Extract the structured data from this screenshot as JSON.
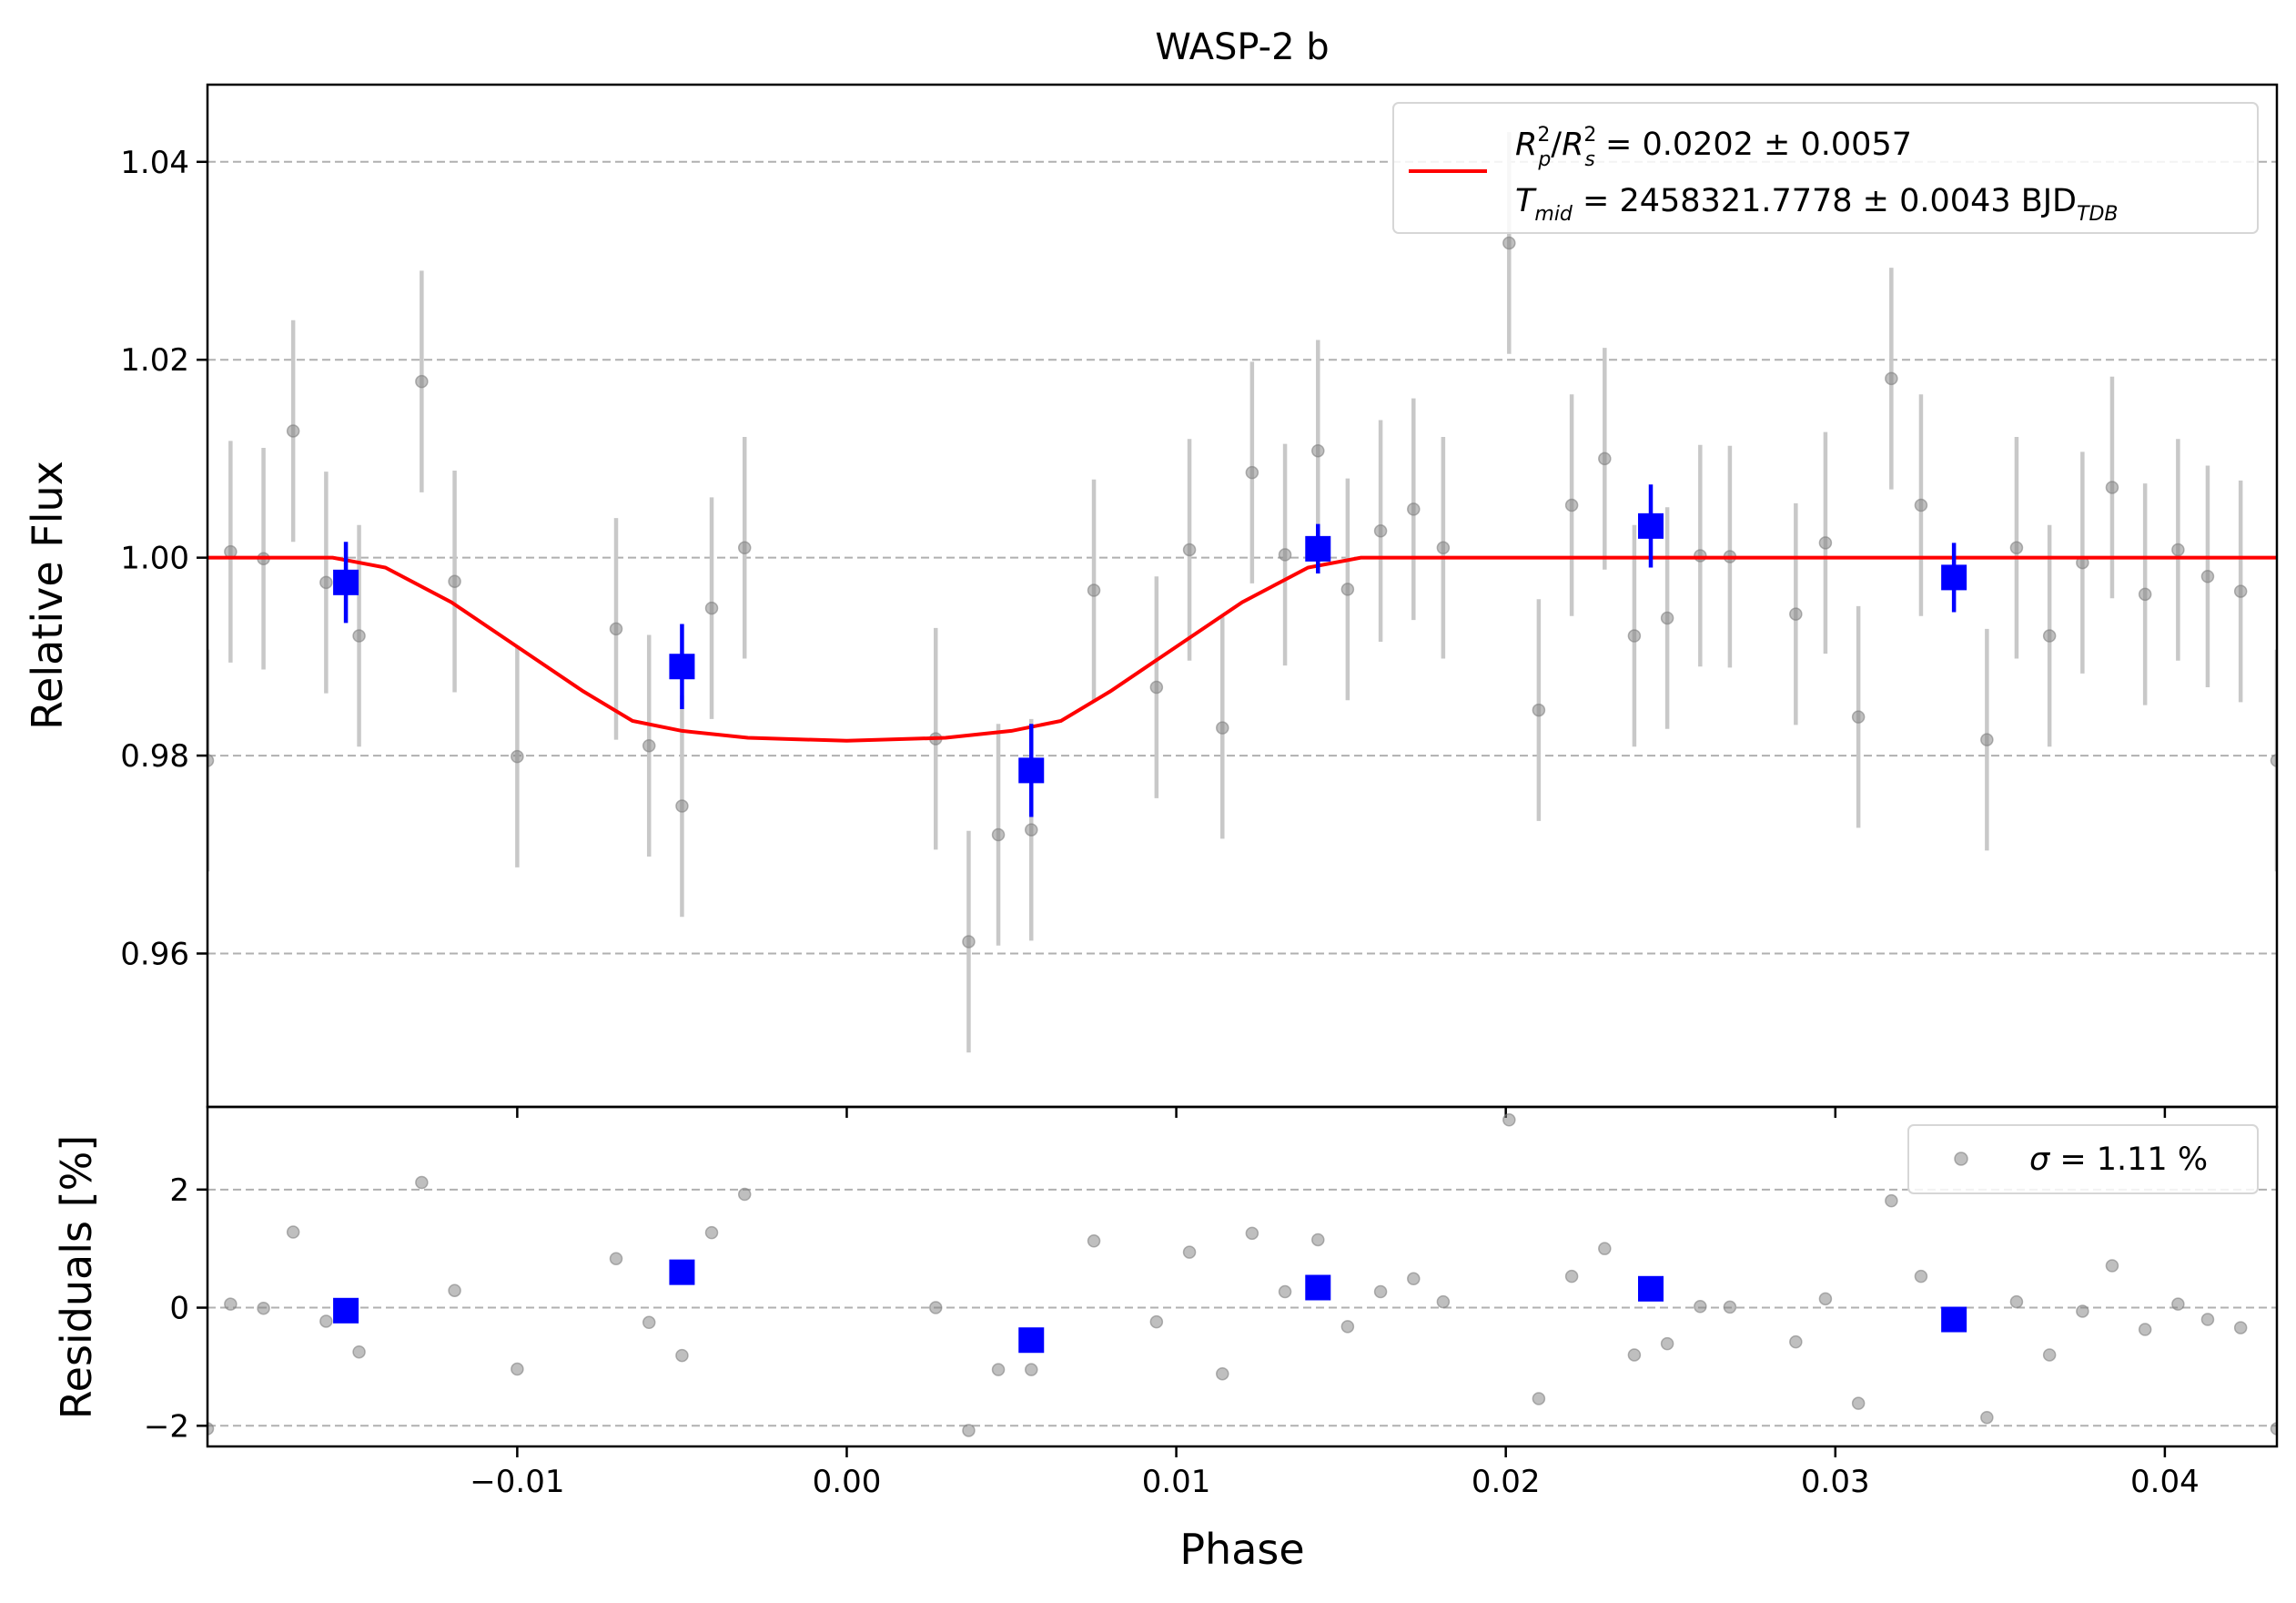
{
  "chart_data": [
    {
      "panel": "flux",
      "type": "scatter",
      "title": "WASP-2 b",
      "xlabel": "",
      "ylabel": "Relative Flux",
      "xlim": [
        -0.0194,
        0.0434
      ],
      "ylim": [
        0.9445,
        1.0478
      ],
      "xticks": [
        -0.01,
        0.0,
        0.01,
        0.02,
        0.03,
        0.04
      ],
      "xtick_labels": [
        "",
        "",
        "",
        "",
        "",
        ""
      ],
      "yticks": [
        0.96,
        0.98,
        1.0,
        1.02,
        1.04
      ],
      "ytick_labels": [
        "0.96",
        "0.98",
        "1.00",
        "1.02",
        "1.04"
      ],
      "grid": "horizontal dashed",
      "legend": {
        "placement": "upper-right",
        "line1": {
          "r": "R",
          "p": "p",
          "s": "s",
          "sq": "2",
          "text": " = 0.0202 ± 0.0057"
        },
        "line2": {
          "t": "T",
          "mid": "mid",
          "text": " = 2458321.7778 ± 0.0043 BJD",
          "tdb": "TDB"
        }
      },
      "colors": {
        "data": "#808080",
        "errorbar": "#c8c8c8",
        "binned": "#0000ff",
        "model": "#ff0000",
        "grid": "#b0b0b0"
      },
      "data_points": {
        "x": [
          -0.0194,
          -0.0187,
          -0.0177,
          -0.0168,
          -0.0158,
          -0.0148,
          -0.0129,
          -0.0119,
          -0.01,
          -0.007,
          -0.006,
          -0.005,
          -0.0041,
          -0.0031,
          0.0027,
          0.0037,
          0.0046,
          0.0056,
          0.0075,
          0.0094,
          0.0104,
          0.0114,
          0.0123,
          0.0133,
          0.0143,
          0.0152,
          0.0162,
          0.0172,
          0.0181,
          0.0201,
          0.021,
          0.022,
          0.023,
          0.0239,
          0.0249,
          0.0259,
          0.0268,
          0.0288,
          0.0297,
          0.0307,
          0.0317,
          0.0326,
          0.0346,
          0.0355,
          0.0365,
          0.0375,
          0.0384,
          0.0394,
          0.0404,
          0.0413,
          0.0423,
          0.0434
        ],
        "y": [
          0.9795,
          1.0006,
          0.9999,
          1.0128,
          0.9975,
          0.9921,
          1.0178,
          0.9976,
          0.9799,
          0.9928,
          0.981,
          0.9749,
          0.9949,
          1.001,
          0.9817,
          0.9612,
          0.972,
          0.9725,
          0.9967,
          0.9869,
          1.0008,
          0.9828,
          1.0086,
          1.0003,
          1.0108,
          0.9968,
          1.0027,
          1.0049,
          1.001,
          1.0318,
          0.9846,
          1.0053,
          1.01,
          0.9921,
          0.9939,
          1.0002,
          1.0001,
          0.9943,
          1.0015,
          0.9839,
          1.0181,
          1.0053,
          0.9816,
          1.001,
          0.9921,
          0.9995,
          1.0071,
          0.9963,
          1.0008,
          0.9981,
          0.9966,
          0.9795
        ],
        "yerr": 0.0112
      },
      "binned_points": {
        "x": [
          -0.0152,
          -0.005,
          0.0056,
          0.0143,
          0.0244,
          0.0336
        ],
        "y": [
          0.9975,
          0.989,
          0.9785,
          1.0009,
          1.0032,
          0.998
        ],
        "yerr": [
          0.0041,
          0.0043,
          0.0047,
          0.0025,
          0.0042,
          0.0035
        ]
      },
      "model": {
        "x": [
          -0.0194,
          -0.0156,
          -0.014,
          -0.012,
          -0.01,
          -0.008,
          -0.0065,
          -0.005,
          -0.003,
          0.0,
          0.003,
          0.005,
          0.0065,
          0.008,
          0.01,
          0.012,
          0.014,
          0.0156,
          0.0434
        ],
        "y": [
          1.0,
          1.0,
          0.999,
          0.9955,
          0.991,
          0.9865,
          0.9835,
          0.9825,
          0.9818,
          0.9815,
          0.9818,
          0.9825,
          0.9835,
          0.9865,
          0.991,
          0.9955,
          0.999,
          1.0,
          1.0
        ]
      }
    },
    {
      "panel": "residuals",
      "type": "scatter",
      "title": "",
      "xlabel": "Phase",
      "ylabel": "Residuals [%]",
      "xlim": [
        -0.0194,
        0.0434
      ],
      "ylim": [
        -2.35,
        3.4
      ],
      "xticks": [
        -0.01,
        0.0,
        0.01,
        0.02,
        0.03,
        0.04
      ],
      "xtick_labels": [
        "−0.01",
        "0.00",
        "0.01",
        "0.02",
        "0.03",
        "0.04"
      ],
      "yticks": [
        -2,
        0,
        2
      ],
      "ytick_labels": [
        "−2",
        "0",
        "2"
      ],
      "grid": "horizontal dashed",
      "legend": {
        "placement": "upper-right",
        "sigma": "σ",
        "text": " = 1.11 %"
      },
      "residuals": {
        "x": [
          -0.0194,
          -0.0187,
          -0.0177,
          -0.0168,
          -0.0158,
          -0.0148,
          -0.0129,
          -0.0119,
          -0.01,
          -0.007,
          -0.006,
          -0.005,
          -0.0041,
          -0.0031,
          0.0027,
          0.0037,
          0.0046,
          0.0056,
          0.0075,
          0.0094,
          0.0104,
          0.0114,
          0.0123,
          0.0133,
          0.0143,
          0.0152,
          0.0162,
          0.0172,
          0.0181,
          0.0201,
          0.021,
          0.022,
          0.023,
          0.0239,
          0.0249,
          0.0259,
          0.0268,
          0.0288,
          0.0297,
          0.0307,
          0.0317,
          0.0326,
          0.0346,
          0.0355,
          0.0365,
          0.0375,
          0.0384,
          0.0394,
          0.0404,
          0.0413,
          0.0423,
          0.0434
        ],
        "y": [
          -2.05,
          0.06,
          -0.01,
          1.28,
          -0.23,
          -0.75,
          2.12,
          0.29,
          -1.04,
          0.83,
          -0.25,
          -0.81,
          1.27,
          1.92,
          0.0,
          -2.08,
          -1.05,
          -1.05,
          1.13,
          -0.24,
          0.94,
          -1.12,
          1.26,
          0.27,
          1.15,
          -0.32,
          0.27,
          0.49,
          0.1,
          3.18,
          -1.54,
          0.53,
          1.0,
          -0.8,
          -0.61,
          0.02,
          0.01,
          -0.58,
          0.15,
          -1.62,
          1.81,
          0.53,
          -1.86,
          0.1,
          -0.8,
          -0.06,
          0.71,
          -0.37,
          0.06,
          -0.2,
          -0.34,
          -2.05
        ]
      },
      "binned_residuals": {
        "x": [
          -0.0152,
          -0.005,
          0.0056,
          0.0143,
          0.0244,
          0.0336
        ],
        "y": [
          -0.05,
          0.6,
          -0.55,
          0.34,
          0.32,
          -0.2
        ]
      }
    }
  ]
}
